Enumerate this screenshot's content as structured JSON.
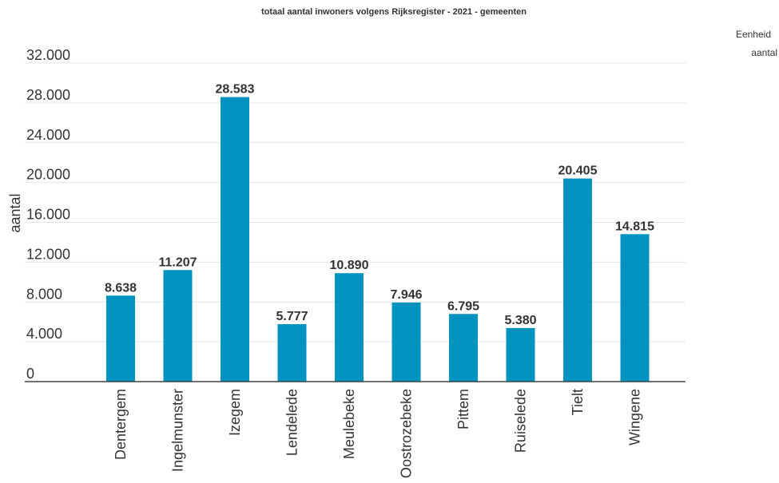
{
  "chart_data": {
    "type": "bar",
    "title": "totaal aantal inwoners volgens Rijksregister - 2021 - gemeenten",
    "xlabel": "",
    "ylabel": "aantal",
    "categories": [
      "Dentergem",
      "Ingelmunster",
      "Izegem",
      "Lendelede",
      "Meulebeke",
      "Oostrozebeke",
      "Pittem",
      "Ruiselede",
      "Tielt",
      "Wingene"
    ],
    "values": [
      8638,
      11207,
      28583,
      5777,
      10890,
      7946,
      6795,
      5380,
      20405,
      14815
    ],
    "value_labels": [
      "8.638",
      "11.207",
      "28.583",
      "5.777",
      "10.890",
      "7.946",
      "6.795",
      "5.380",
      "20.405",
      "14.815"
    ],
    "ylim": [
      0,
      32000
    ],
    "yticks": [
      0,
      4000,
      8000,
      12000,
      16000,
      20000,
      24000,
      28000,
      32000
    ],
    "ytick_labels": [
      "0",
      "4.000",
      "8.000",
      "12.000",
      "16.000",
      "20.000",
      "24.000",
      "28.000",
      "32.000"
    ],
    "grid": true,
    "bar_color": "#0093c0",
    "legend": {
      "title": "Eenheid",
      "value": "aantal",
      "placement": "top-right"
    }
  }
}
